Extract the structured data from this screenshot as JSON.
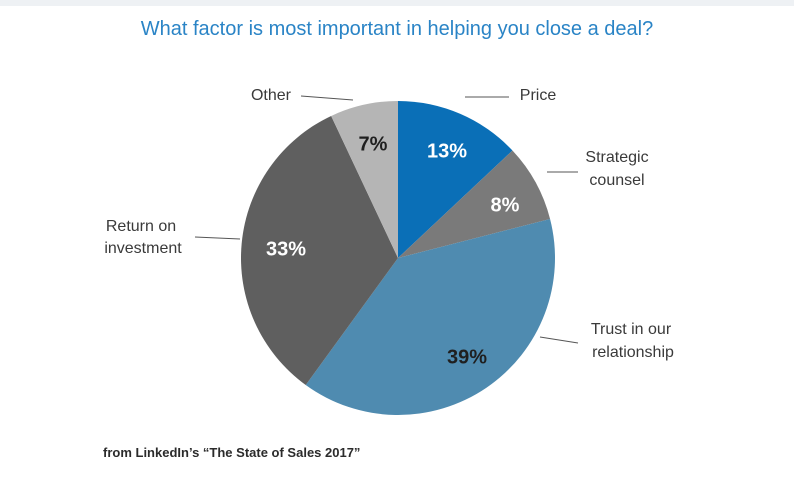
{
  "chart_data": {
    "type": "pie",
    "title": "What factor is most important in helping you close a deal?",
    "slices": [
      {
        "label": "Price",
        "value": 13,
        "display": "13%",
        "color": "#0a6fb7",
        "text_color": "#ffffff"
      },
      {
        "label": "Strategic counsel",
        "label_lines": [
          "Strategic",
          "counsel"
        ],
        "value": 8,
        "display": "8%",
        "color": "#7a7a7a",
        "text_color": "#ffffff"
      },
      {
        "label": "Trust in our relationship",
        "label_lines": [
          "Trust in our",
          "relationship"
        ],
        "value": 39,
        "display": "39%",
        "color": "#4f8bb0",
        "text_color": "#1f1f1f"
      },
      {
        "label": "Return on investment",
        "label_lines": [
          "Return on",
          "investment"
        ],
        "value": 33,
        "display": "33%",
        "color": "#5f5f5f",
        "text_color": "#ffffff"
      },
      {
        "label": "Other",
        "value": 7,
        "display": "7%",
        "color": "#b5b5b5",
        "text_color": "#1f1f1f"
      }
    ]
  },
  "source_note": "from LinkedIn’s “The State of Sales 2017”"
}
